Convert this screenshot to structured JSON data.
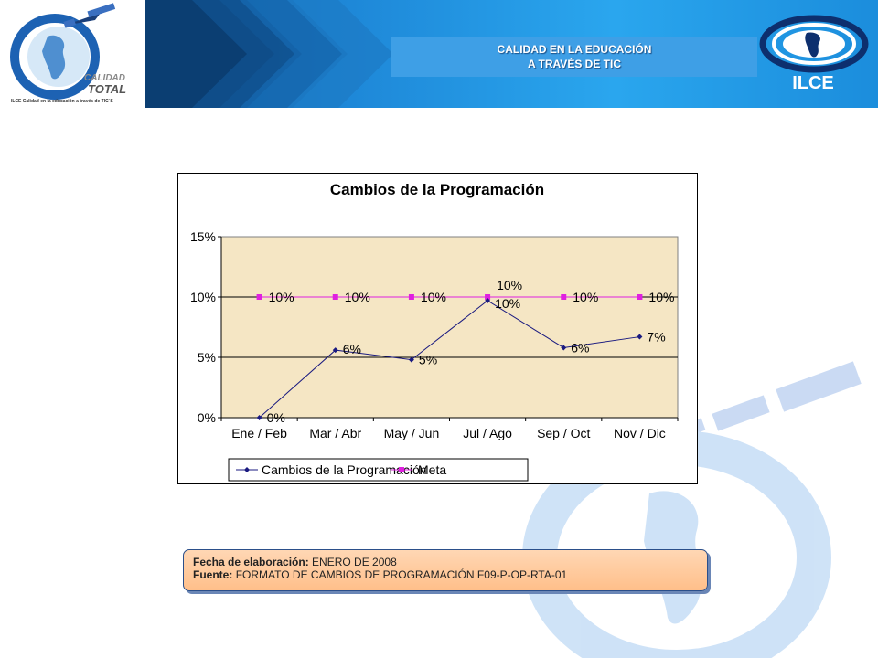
{
  "header": {
    "title_line1": "CALIDAD EN LA EDUCACIÓN",
    "title_line2": "A TRAVÉS DE TIC",
    "logo_word1": "CALIDAD",
    "logo_word2": "TOTAL",
    "logo_caption": "ILCE Calidad en la educación a través de TIC´S",
    "org_label": "ILCE"
  },
  "chart_data": {
    "type": "line",
    "title": "Cambios de la Programación",
    "categories": [
      "Ene / Feb",
      "Mar / Abr",
      "May / Jun",
      "Jul / Ago",
      "Sep / Oct",
      "Nov / Dic"
    ],
    "series": [
      {
        "name": "Cambios de la Programación",
        "values": [
          0,
          5.6,
          4.8,
          9.7,
          5.8,
          6.7
        ],
        "labels": [
          "0%",
          "6%",
          "5%",
          "10%",
          "6%",
          "7%"
        ],
        "color": "#1a1a80"
      },
      {
        "name": "Meta",
        "values": [
          10,
          10,
          10,
          10,
          10,
          10
        ],
        "labels": [
          "10%",
          "10%",
          "10%",
          "10%",
          "10%",
          "10%"
        ],
        "color": "#e020e0"
      }
    ],
    "ylim": [
      0,
      15
    ],
    "yticks": [
      "0%",
      "5%",
      "10%",
      "15%"
    ],
    "ytick_values": [
      0,
      5,
      10,
      15
    ],
    "grid": true,
    "legend": "bottom",
    "plot_background": "#f5e6c4"
  },
  "footer_note": {
    "date_label": "Fecha de elaboración:",
    "date_value": "ENERO DE 2008",
    "source_label": "Fuente:",
    "source_value": "FORMATO DE CAMBIOS DE PROGRAMACIÓN F09-P-OP-RTA-01"
  }
}
